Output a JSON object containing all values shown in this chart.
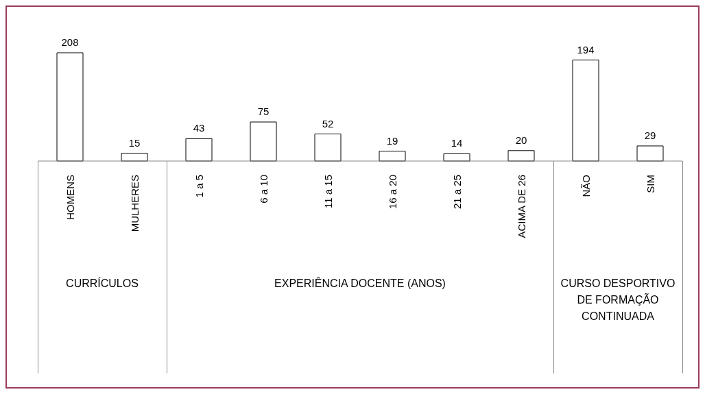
{
  "chart_data": {
    "type": "bar",
    "categories": [
      "HOMENS",
      "MULHERES",
      "1 a 5",
      "6 a 10",
      "11 a 15",
      "16 a 20",
      "21 a 25",
      "ACIMA DE 26",
      "NÃO",
      "SIM"
    ],
    "values": [
      208,
      15,
      43,
      75,
      52,
      19,
      14,
      20,
      194,
      29
    ],
    "color": "#ffffff",
    "data_labels": true,
    "grid": false,
    "legend": false,
    "annotations": [
      "CURRÍCULOS",
      "EXPERIÊNCIA DOCENTE (ANOS)",
      "CURSO DESPORTIVO DE FORMAÇÃO CONTINUADA"
    ]
  }
}
